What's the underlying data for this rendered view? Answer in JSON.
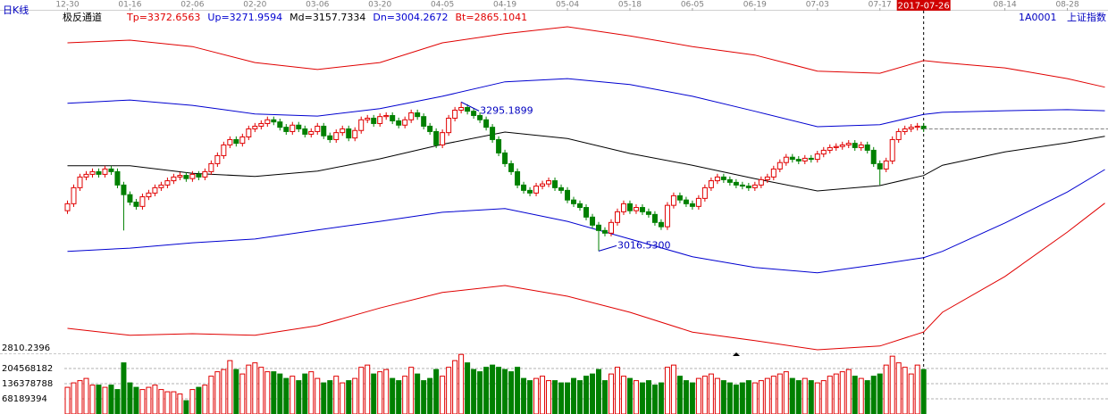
{
  "chart_data": {
    "type": "candlestick",
    "period": "日K线",
    "indicator": "极反通道",
    "symbol": "1A0001",
    "name": "上证指数",
    "xlim": [
      -0.5,
      166.5
    ],
    "xticks": [
      {
        "value": 0,
        "label": "12-30"
      },
      {
        "value": 10,
        "label": "01-16"
      },
      {
        "value": 20,
        "label": "02-06"
      },
      {
        "value": 30,
        "label": "02-20"
      },
      {
        "value": 40,
        "label": "03-06"
      },
      {
        "value": 50,
        "label": "03-20"
      },
      {
        "value": 60,
        "label": "04-05"
      },
      {
        "value": 70,
        "label": "04-19"
      },
      {
        "value": 80,
        "label": "05-04"
      },
      {
        "value": 90,
        "label": "05-18"
      },
      {
        "value": 100,
        "label": "06-05"
      },
      {
        "value": 110,
        "label": "06-19"
      },
      {
        "value": 120,
        "label": "07-03"
      },
      {
        "value": 130,
        "label": "07-17"
      },
      {
        "value": 137,
        "label": "2017-07-26"
      },
      {
        "value": 150,
        "label": "08-14"
      },
      {
        "value": 160,
        "label": "08-28"
      }
    ],
    "cursor_tick": 14,
    "ylim": [
      2810.2396,
      3466
    ],
    "yticks": [
      2810.2396
    ],
    "last_price_line": true,
    "candles": {
      "up_color": "#e00000",
      "down_color": "#008000",
      "open": [
        3092,
        3105,
        3135,
        3155,
        3160,
        3165,
        3160,
        3170,
        3165,
        3140,
        3122,
        3108,
        3100,
        3118,
        3125,
        3135,
        3140,
        3148,
        3155,
        3158,
        3152,
        3160,
        3155,
        3165,
        3180,
        3195,
        3215,
        3225,
        3218,
        3230,
        3245,
        3250,
        3255,
        3262,
        3258,
        3248,
        3240,
        3252,
        3245,
        3235,
        3240,
        3250,
        3232,
        3225,
        3238,
        3245,
        3228,
        3242,
        3262,
        3265,
        3255,
        3268,
        3270,
        3260,
        3252,
        3262,
        3275,
        3268,
        3250,
        3240,
        3215,
        3238,
        3265,
        3280,
        3285,
        3278,
        3270,
        3262,
        3248,
        3225,
        3200,
        3180,
        3165,
        3140,
        3130,
        3125,
        3138,
        3142,
        3148,
        3135,
        3130,
        3112,
        3105,
        3098,
        3080,
        3065,
        3055,
        3050,
        3070,
        3090,
        3105,
        3092,
        3098,
        3090,
        3085,
        3070,
        3062,
        3102,
        3120,
        3112,
        3105,
        3100,
        3115,
        3135,
        3148,
        3155,
        3150,
        3145,
        3140,
        3138,
        3135,
        3140,
        3150,
        3155,
        3170,
        3182,
        3192,
        3188,
        3185,
        3190,
        3188,
        3198,
        3205,
        3210,
        3212,
        3215,
        3218,
        3210,
        3215,
        3205,
        3180,
        3170,
        3185,
        3225,
        3240,
        3245,
        3248,
        3250
      ],
      "high": [
        3111,
        3141,
        3161,
        3166,
        3171,
        3171,
        3176,
        3176,
        3171,
        3146,
        3128,
        3114,
        3124,
        3131,
        3141,
        3146,
        3154,
        3161,
        3164,
        3164,
        3166,
        3166,
        3171,
        3186,
        3201,
        3221,
        3231,
        3231,
        3236,
        3251,
        3256,
        3261,
        3268,
        3268,
        3264,
        3254,
        3258,
        3258,
        3251,
        3246,
        3256,
        3256,
        3238,
        3244,
        3251,
        3251,
        3248,
        3268,
        3271,
        3271,
        3274,
        3276,
        3276,
        3266,
        3268,
        3281,
        3281,
        3274,
        3256,
        3246,
        3244,
        3271,
        3286,
        3295.1899,
        3291,
        3284,
        3276,
        3268,
        3254,
        3231,
        3206,
        3186,
        3171,
        3146,
        3136,
        3144,
        3148,
        3154,
        3154,
        3141,
        3136,
        3118,
        3111,
        3104,
        3086,
        3071,
        3061,
        3076,
        3096,
        3111,
        3111,
        3104,
        3104,
        3096,
        3091,
        3076,
        3108,
        3126,
        3126,
        3118,
        3111,
        3121,
        3141,
        3154,
        3161,
        3161,
        3156,
        3151,
        3146,
        3144,
        3146,
        3156,
        3161,
        3176,
        3188,
        3198,
        3198,
        3194,
        3196,
        3196,
        3204,
        3211,
        3216,
        3218,
        3221,
        3224,
        3224,
        3221,
        3221,
        3211,
        3186,
        3191,
        3231,
        3246,
        3251,
        3254,
        3256,
        3256
      ],
      "low": [
        3086,
        3099,
        3129,
        3149,
        3154,
        3154,
        3154,
        3159,
        3134,
        3055,
        3102,
        3094,
        3094,
        3112,
        3119,
        3129,
        3134,
        3142,
        3149,
        3146,
        3146,
        3149,
        3149,
        3159,
        3174,
        3189,
        3209,
        3212,
        3212,
        3224,
        3239,
        3244,
        3249,
        3252,
        3242,
        3234,
        3234,
        3239,
        3229,
        3229,
        3234,
        3226,
        3219,
        3219,
        3232,
        3222,
        3222,
        3236,
        3256,
        3249,
        3249,
        3262,
        3254,
        3246,
        3246,
        3256,
        3262,
        3244,
        3234,
        3209,
        3209,
        3232,
        3259,
        3274,
        3272,
        3264,
        3256,
        3242,
        3219,
        3194,
        3174,
        3159,
        3134,
        3124,
        3119,
        3119,
        3132,
        3136,
        3129,
        3124,
        3106,
        3099,
        3092,
        3074,
        3059,
        3016.53,
        3044,
        3044,
        3064,
        3084,
        3086,
        3086,
        3084,
        3079,
        3064,
        3056,
        3056,
        3096,
        3106,
        3099,
        3094,
        3094,
        3109,
        3129,
        3142,
        3144,
        3139,
        3134,
        3132,
        3129,
        3129,
        3134,
        3144,
        3149,
        3164,
        3176,
        3182,
        3179,
        3179,
        3182,
        3182,
        3192,
        3199,
        3204,
        3206,
        3209,
        3204,
        3204,
        3199,
        3174,
        3140,
        3164,
        3179,
        3219,
        3234,
        3239,
        3242,
        3239
      ],
      "close": [
        3105,
        3135,
        3155,
        3160,
        3165,
        3160,
        3170,
        3165,
        3140,
        3122,
        3108,
        3100,
        3118,
        3125,
        3135,
        3140,
        3148,
        3155,
        3158,
        3152,
        3160,
        3155,
        3165,
        3180,
        3195,
        3215,
        3225,
        3218,
        3230,
        3245,
        3250,
        3255,
        3262,
        3258,
        3248,
        3240,
        3252,
        3245,
        3235,
        3240,
        3250,
        3232,
        3225,
        3238,
        3245,
        3228,
        3242,
        3262,
        3265,
        3255,
        3268,
        3270,
        3260,
        3252,
        3262,
        3275,
        3268,
        3250,
        3240,
        3215,
        3238,
        3265,
        3280,
        3285,
        3278,
        3270,
        3262,
        3248,
        3225,
        3200,
        3180,
        3165,
        3140,
        3130,
        3125,
        3138,
        3142,
        3148,
        3135,
        3130,
        3112,
        3105,
        3098,
        3080,
        3065,
        3055,
        3050,
        3070,
        3090,
        3105,
        3092,
        3098,
        3090,
        3085,
        3070,
        3062,
        3102,
        3120,
        3112,
        3105,
        3100,
        3115,
        3135,
        3148,
        3155,
        3150,
        3145,
        3140,
        3138,
        3135,
        3140,
        3150,
        3155,
        3170,
        3182,
        3192,
        3188,
        3185,
        3190,
        3188,
        3198,
        3205,
        3210,
        3212,
        3215,
        3218,
        3210,
        3215,
        3205,
        3180,
        3170,
        3185,
        3225,
        3240,
        3245,
        3248,
        3250,
        3245
      ]
    },
    "bands": [
      {
        "name": "Tp=3372.6563",
        "color": "#e00000",
        "x": [
          0,
          10,
          20,
          30,
          40,
          50,
          60,
          70,
          80,
          90,
          100,
          110,
          120,
          130,
          137,
          140,
          150,
          160,
          166
        ],
        "values": [
          3406,
          3411,
          3399,
          3369,
          3356,
          3369,
          3406,
          3423,
          3436,
          3419,
          3399,
          3383,
          3353,
          3349,
          3372.6563,
          3369,
          3359,
          3339,
          3323
        ]
      },
      {
        "name": "Up=3271.9594",
        "color": "#0000d0",
        "x": [
          0,
          10,
          20,
          30,
          40,
          50,
          60,
          70,
          80,
          90,
          100,
          110,
          120,
          130,
          137,
          140,
          150,
          160,
          166
        ],
        "values": [
          3293,
          3299,
          3289,
          3273,
          3269,
          3283,
          3306,
          3333,
          3339,
          3328,
          3306,
          3278,
          3249,
          3253,
          3271.9594,
          3276,
          3279,
          3281,
          3279
        ]
      },
      {
        "name": "Md=3157.7334",
        "color": "#000000",
        "x": [
          0,
          10,
          20,
          30,
          40,
          50,
          60,
          70,
          80,
          90,
          100,
          110,
          120,
          130,
          137,
          140,
          150,
          160,
          166
        ],
        "values": [
          3176,
          3176,
          3162,
          3156,
          3166,
          3189,
          3216,
          3239,
          3227,
          3199,
          3177,
          3152,
          3129,
          3139,
          3157.7334,
          3177,
          3202,
          3219,
          3231
        ]
      },
      {
        "name": "Dn=3004.2672",
        "color": "#0000d0",
        "x": [
          0,
          10,
          20,
          30,
          40,
          50,
          60,
          70,
          80,
          90,
          100,
          110,
          120,
          130,
          137,
          140,
          150,
          160,
          166
        ],
        "values": [
          3016,
          3022,
          3032,
          3039,
          3056,
          3072,
          3089,
          3096,
          3072,
          3039,
          3006,
          2986,
          2976,
          2992,
          3004.2672,
          3016,
          3069,
          3127,
          3169
        ]
      },
      {
        "name": "Bt=2865.1041",
        "color": "#e00000",
        "x": [
          0,
          10,
          20,
          30,
          40,
          50,
          60,
          70,
          80,
          90,
          100,
          110,
          120,
          130,
          137,
          140,
          150,
          160,
          166
        ],
        "values": [
          2872,
          2859,
          2862,
          2859,
          2877,
          2910,
          2939,
          2952,
          2932,
          2902,
          2865,
          2849,
          2832,
          2839,
          2865.1041,
          2902,
          2969,
          3052,
          3106
        ]
      }
    ],
    "annotations": [
      {
        "text": "3295.1899",
        "at": "high"
      },
      {
        "text": "3016.5300",
        "at": "low"
      }
    ],
    "volume": {
      "ylim": [
        0,
        272757576
      ],
      "yticks": [
        68189394,
        136378788,
        204568182
      ],
      "values": [
        120000000,
        140000000,
        150000000,
        160000000,
        130000000,
        130000000,
        120000000,
        130000000,
        110000000,
        230000000,
        140000000,
        120000000,
        110000000,
        120000000,
        130000000,
        110000000,
        100000000,
        100000000,
        90000000,
        60000000,
        110000000,
        120000000,
        130000000,
        170000000,
        190000000,
        200000000,
        240000000,
        200000000,
        180000000,
        220000000,
        230000000,
        210000000,
        190000000,
        190000000,
        180000000,
        160000000,
        170000000,
        150000000,
        180000000,
        190000000,
        160000000,
        140000000,
        150000000,
        170000000,
        140000000,
        150000000,
        160000000,
        210000000,
        220000000,
        180000000,
        190000000,
        200000000,
        160000000,
        150000000,
        170000000,
        210000000,
        180000000,
        150000000,
        160000000,
        200000000,
        170000000,
        210000000,
        240000000,
        268000000,
        230000000,
        200000000,
        190000000,
        210000000,
        220000000,
        210000000,
        200000000,
        190000000,
        210000000,
        160000000,
        150000000,
        160000000,
        170000000,
        150000000,
        150000000,
        140000000,
        140000000,
        160000000,
        150000000,
        170000000,
        180000000,
        200000000,
        150000000,
        180000000,
        210000000,
        170000000,
        160000000,
        150000000,
        140000000,
        150000000,
        130000000,
        140000000,
        210000000,
        220000000,
        170000000,
        150000000,
        140000000,
        160000000,
        170000000,
        180000000,
        160000000,
        150000000,
        140000000,
        130000000,
        140000000,
        150000000,
        140000000,
        150000000,
        160000000,
        170000000,
        180000000,
        190000000,
        160000000,
        150000000,
        160000000,
        150000000,
        140000000,
        150000000,
        170000000,
        180000000,
        190000000,
        200000000,
        170000000,
        160000000,
        150000000,
        170000000,
        180000000,
        220000000,
        260000000,
        230000000,
        210000000,
        180000000,
        220000000,
        200000000
      ]
    }
  }
}
